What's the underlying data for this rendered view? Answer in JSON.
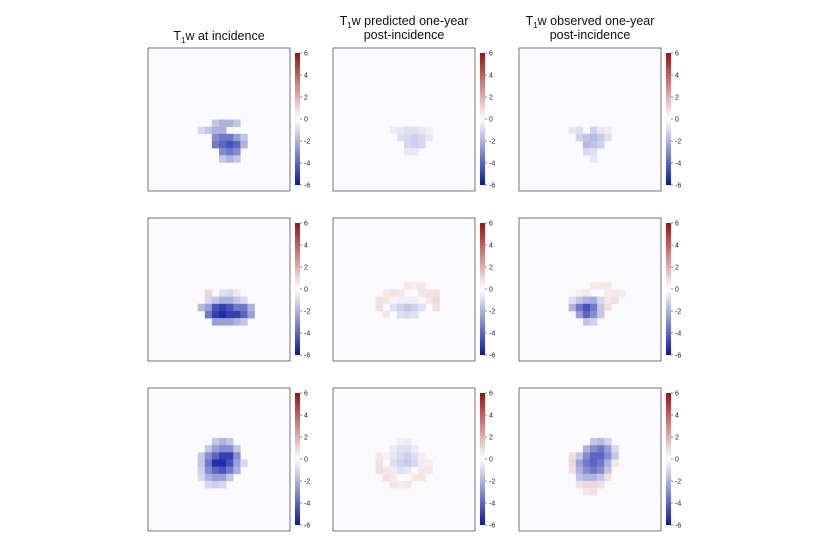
{
  "titles": [
    {
      "lines": [
        "T",
        "w at incidence"
      ],
      "sub": "1"
    },
    {
      "lines": [
        "T",
        "w predicted one-year",
        "post-incidence"
      ],
      "sub": "1"
    },
    {
      "lines": [
        "T",
        "w observed one-year",
        "post-incidence"
      ],
      "sub": "1"
    }
  ],
  "colorbar": {
    "ticks": [
      "6",
      "4",
      "2",
      "0",
      "-2",
      "-4",
      "-6"
    ],
    "range": [
      -6,
      6
    ],
    "low_color": "#0a1aa0",
    "mid_color": "#ffffff",
    "high_color": "#a01010"
  },
  "chart_data": {
    "type": "heatmap",
    "grid": [
      20,
      20
    ],
    "value_range": [
      -6,
      6
    ],
    "panels": [
      {
        "row": 0,
        "col": 0,
        "cells": [
          [
            7,
            11,
            -1
          ],
          [
            8,
            11,
            -1.5
          ],
          [
            9,
            11,
            -2
          ],
          [
            10,
            11,
            -2
          ],
          [
            9,
            10,
            -1.5
          ],
          [
            10,
            10,
            -2
          ],
          [
            11,
            10,
            -2
          ],
          [
            12,
            10,
            -1.5
          ],
          [
            9,
            12,
            -3
          ],
          [
            10,
            12,
            -3.5
          ],
          [
            11,
            12,
            -3.5
          ],
          [
            12,
            12,
            -2.5
          ],
          [
            13,
            12,
            -1.5
          ],
          [
            9,
            13,
            -3.5
          ],
          [
            10,
            13,
            -4
          ],
          [
            11,
            13,
            -4.5
          ],
          [
            12,
            13,
            -4
          ],
          [
            13,
            13,
            -2
          ],
          [
            10,
            14,
            -3
          ],
          [
            11,
            14,
            -3.5
          ],
          [
            12,
            14,
            -3
          ],
          [
            10,
            15,
            -1.5
          ],
          [
            11,
            15,
            -2
          ],
          [
            12,
            15,
            -1.5
          ]
        ]
      },
      {
        "row": 0,
        "col": 1,
        "cells": [
          [
            8,
            11,
            -0.5
          ],
          [
            9,
            11,
            -0.6
          ],
          [
            10,
            11,
            -0.8
          ],
          [
            11,
            11,
            -0.8
          ],
          [
            12,
            11,
            -0.6
          ],
          [
            13,
            11,
            -0.4
          ],
          [
            9,
            12,
            -0.8
          ],
          [
            10,
            12,
            -1
          ],
          [
            11,
            12,
            -1.2
          ],
          [
            12,
            12,
            -1
          ],
          [
            13,
            12,
            -0.6
          ],
          [
            10,
            13,
            -1
          ],
          [
            11,
            13,
            -1.2
          ],
          [
            12,
            13,
            -1
          ],
          [
            10,
            14,
            -0.6
          ],
          [
            11,
            14,
            -0.6
          ]
        ]
      },
      {
        "row": 0,
        "col": 2,
        "cells": [
          [
            7,
            11,
            -0.6
          ],
          [
            8,
            11,
            -0.8
          ],
          [
            10,
            11,
            -1.2
          ],
          [
            11,
            11,
            -0.6
          ],
          [
            12,
            11,
            0.5
          ],
          [
            8,
            12,
            -1.2
          ],
          [
            9,
            12,
            -1.5
          ],
          [
            10,
            12,
            -1.8
          ],
          [
            11,
            12,
            -1.4
          ],
          [
            12,
            12,
            -0.8
          ],
          [
            9,
            13,
            -1.8
          ],
          [
            10,
            13,
            -1.6
          ],
          [
            11,
            13,
            -1.2
          ],
          [
            9,
            14,
            -1
          ],
          [
            10,
            14,
            -0.8
          ],
          [
            10,
            15,
            -0.6
          ]
        ]
      },
      {
        "row": 1,
        "col": 0,
        "cells": [
          [
            8,
            10,
            1
          ],
          [
            10,
            10,
            -0.8
          ],
          [
            11,
            10,
            -1
          ],
          [
            12,
            10,
            0.6
          ],
          [
            8,
            11,
            -1
          ],
          [
            9,
            11,
            -1.5
          ],
          [
            10,
            11,
            -2
          ],
          [
            11,
            11,
            -2
          ],
          [
            12,
            11,
            -1.5
          ],
          [
            13,
            11,
            -1
          ],
          [
            7,
            12,
            -1.8
          ],
          [
            8,
            12,
            -2.5
          ],
          [
            9,
            12,
            -4.5
          ],
          [
            10,
            12,
            -5
          ],
          [
            11,
            12,
            -4.5
          ],
          [
            12,
            12,
            -3.5
          ],
          [
            13,
            12,
            -3.5
          ],
          [
            14,
            12,
            -2
          ],
          [
            8,
            13,
            -3.5
          ],
          [
            9,
            13,
            -5
          ],
          [
            10,
            13,
            -5.5
          ],
          [
            11,
            13,
            -5
          ],
          [
            12,
            13,
            -5
          ],
          [
            13,
            13,
            -4
          ],
          [
            14,
            13,
            -2.5
          ],
          [
            9,
            14,
            -2.5
          ],
          [
            10,
            14,
            -2.5
          ],
          [
            11,
            14,
            -2.5
          ],
          [
            12,
            14,
            -2
          ],
          [
            13,
            14,
            -1.5
          ]
        ]
      },
      {
        "row": 1,
        "col": 1,
        "cells": [
          [
            10,
            9,
            0.6
          ],
          [
            11,
            9,
            0.5
          ],
          [
            12,
            9,
            0.6
          ],
          [
            7,
            10,
            0.6
          ],
          [
            8,
            10,
            0.8
          ],
          [
            9,
            10,
            0.6
          ],
          [
            12,
            10,
            0.6
          ],
          [
            13,
            10,
            0.8
          ],
          [
            14,
            10,
            0.8
          ],
          [
            6,
            11,
            0.8
          ],
          [
            7,
            11,
            0.6
          ],
          [
            8,
            11,
            -0.3
          ],
          [
            9,
            11,
            -0.4
          ],
          [
            10,
            11,
            -0.4
          ],
          [
            11,
            11,
            -0.4
          ],
          [
            13,
            11,
            0.6
          ],
          [
            14,
            11,
            1
          ],
          [
            6,
            12,
            0.8
          ],
          [
            8,
            12,
            -0.8
          ],
          [
            9,
            12,
            -1.2
          ],
          [
            10,
            12,
            -1.5
          ],
          [
            11,
            12,
            -1.2
          ],
          [
            12,
            12,
            -0.8
          ],
          [
            14,
            12,
            0.8
          ],
          [
            7,
            13,
            0.6
          ],
          [
            9,
            13,
            -0.8
          ],
          [
            10,
            13,
            -1
          ],
          [
            11,
            13,
            -0.8
          ]
        ]
      },
      {
        "row": 1,
        "col": 2,
        "cells": [
          [
            10,
            9,
            0.5
          ],
          [
            11,
            9,
            0.6
          ],
          [
            12,
            9,
            0.6
          ],
          [
            8,
            10,
            -0.4
          ],
          [
            9,
            10,
            0.6
          ],
          [
            12,
            10,
            0.5
          ],
          [
            13,
            10,
            0.6
          ],
          [
            14,
            10,
            0.5
          ],
          [
            7,
            11,
            -0.8
          ],
          [
            8,
            11,
            -1.5
          ],
          [
            9,
            11,
            -2
          ],
          [
            10,
            11,
            -2.2
          ],
          [
            11,
            11,
            -1
          ],
          [
            12,
            11,
            0.6
          ],
          [
            13,
            11,
            0.8
          ],
          [
            7,
            12,
            -2
          ],
          [
            8,
            12,
            -3.5
          ],
          [
            9,
            12,
            -4.5
          ],
          [
            10,
            12,
            -3.5
          ],
          [
            11,
            12,
            -1.5
          ],
          [
            12,
            12,
            0.8
          ],
          [
            8,
            13,
            -2.5
          ],
          [
            9,
            13,
            -4
          ],
          [
            10,
            13,
            -3
          ],
          [
            11,
            13,
            -1.5
          ],
          [
            9,
            14,
            -1.5
          ],
          [
            10,
            14,
            -1.2
          ]
        ]
      },
      {
        "row": 2,
        "col": 0,
        "cells": [
          [
            9,
            7,
            -1.5
          ],
          [
            10,
            7,
            -2
          ],
          [
            11,
            7,
            -1.5
          ],
          [
            8,
            8,
            -1.5
          ],
          [
            9,
            8,
            -2.5
          ],
          [
            10,
            8,
            -3
          ],
          [
            11,
            8,
            -3
          ],
          [
            12,
            8,
            -1.5
          ],
          [
            7,
            9,
            -1.5
          ],
          [
            8,
            9,
            -3
          ],
          [
            9,
            9,
            -4
          ],
          [
            10,
            9,
            -5
          ],
          [
            11,
            9,
            -5
          ],
          [
            12,
            9,
            -3
          ],
          [
            7,
            10,
            -1.5
          ],
          [
            8,
            10,
            -3.5
          ],
          [
            9,
            10,
            -5.5
          ],
          [
            10,
            10,
            -5.5
          ],
          [
            11,
            10,
            -4.5
          ],
          [
            12,
            10,
            -2.5
          ],
          [
            13,
            10,
            -1
          ],
          [
            7,
            11,
            -1.2
          ],
          [
            8,
            11,
            -3
          ],
          [
            9,
            11,
            -4
          ],
          [
            10,
            11,
            -4.5
          ],
          [
            11,
            11,
            -3.5
          ],
          [
            12,
            11,
            -2
          ],
          [
            7,
            12,
            -1
          ],
          [
            8,
            12,
            -2
          ],
          [
            9,
            12,
            -2.5
          ],
          [
            10,
            12,
            -2.5
          ],
          [
            11,
            12,
            -1.5
          ],
          [
            8,
            13,
            -1
          ],
          [
            9,
            13,
            -1.2
          ],
          [
            10,
            13,
            -1
          ]
        ]
      },
      {
        "row": 2,
        "col": 1,
        "cells": [
          [
            9,
            7,
            -0.4
          ],
          [
            10,
            7,
            -0.5
          ],
          [
            8,
            8,
            -0.5
          ],
          [
            9,
            8,
            -0.8
          ],
          [
            10,
            8,
            -0.8
          ],
          [
            11,
            8,
            -0.5
          ],
          [
            6,
            9,
            0.6
          ],
          [
            7,
            9,
            0.4
          ],
          [
            8,
            9,
            -0.6
          ],
          [
            9,
            9,
            -1
          ],
          [
            10,
            9,
            -1.2
          ],
          [
            11,
            9,
            -0.8
          ],
          [
            12,
            9,
            0.5
          ],
          [
            6,
            10,
            0.8
          ],
          [
            8,
            10,
            -0.8
          ],
          [
            9,
            10,
            -1.2
          ],
          [
            10,
            10,
            -1.4
          ],
          [
            11,
            10,
            -1
          ],
          [
            12,
            10,
            -0.5
          ],
          [
            13,
            10,
            0.5
          ],
          [
            6,
            11,
            0.8
          ],
          [
            7,
            11,
            0.6
          ],
          [
            8,
            11,
            -0.5
          ],
          [
            9,
            11,
            -0.8
          ],
          [
            10,
            11,
            -0.6
          ],
          [
            12,
            11,
            0.6
          ],
          [
            13,
            11,
            0.6
          ],
          [
            7,
            12,
            0.8
          ],
          [
            8,
            12,
            0.5
          ],
          [
            11,
            12,
            0.6
          ],
          [
            12,
            12,
            0.6
          ],
          [
            8,
            13,
            0.6
          ],
          [
            9,
            13,
            0.5
          ],
          [
            10,
            13,
            0.6
          ]
        ]
      },
      {
        "row": 2,
        "col": 2,
        "cells": [
          [
            10,
            7,
            -1.5
          ],
          [
            11,
            7,
            -1.8
          ],
          [
            12,
            7,
            -1.2
          ],
          [
            9,
            8,
            -2
          ],
          [
            10,
            8,
            -3
          ],
          [
            11,
            8,
            -3.5
          ],
          [
            12,
            8,
            -2.5
          ],
          [
            13,
            8,
            -1
          ],
          [
            7,
            9,
            0.8
          ],
          [
            8,
            9,
            -1.5
          ],
          [
            9,
            9,
            -3
          ],
          [
            10,
            9,
            -4
          ],
          [
            11,
            9,
            -4
          ],
          [
            12,
            9,
            -3
          ],
          [
            13,
            9,
            -1.5
          ],
          [
            7,
            10,
            1
          ],
          [
            8,
            10,
            -2.5
          ],
          [
            9,
            10,
            -3.5
          ],
          [
            10,
            10,
            -4
          ],
          [
            11,
            10,
            -3.5
          ],
          [
            12,
            10,
            -2
          ],
          [
            13,
            10,
            0.6
          ],
          [
            7,
            11,
            0.8
          ],
          [
            8,
            11,
            -2
          ],
          [
            9,
            11,
            -3
          ],
          [
            10,
            11,
            -3.5
          ],
          [
            11,
            11,
            -3
          ],
          [
            12,
            11,
            -1.5
          ],
          [
            8,
            12,
            -1.5
          ],
          [
            9,
            12,
            -2
          ],
          [
            10,
            12,
            -2
          ],
          [
            11,
            12,
            -1.5
          ],
          [
            12,
            12,
            0.8
          ],
          [
            8,
            13,
            0.8
          ],
          [
            9,
            13,
            1
          ],
          [
            10,
            13,
            1
          ],
          [
            11,
            13,
            0.8
          ],
          [
            9,
            14,
            0.6
          ],
          [
            10,
            14,
            0.8
          ]
        ]
      }
    ]
  }
}
